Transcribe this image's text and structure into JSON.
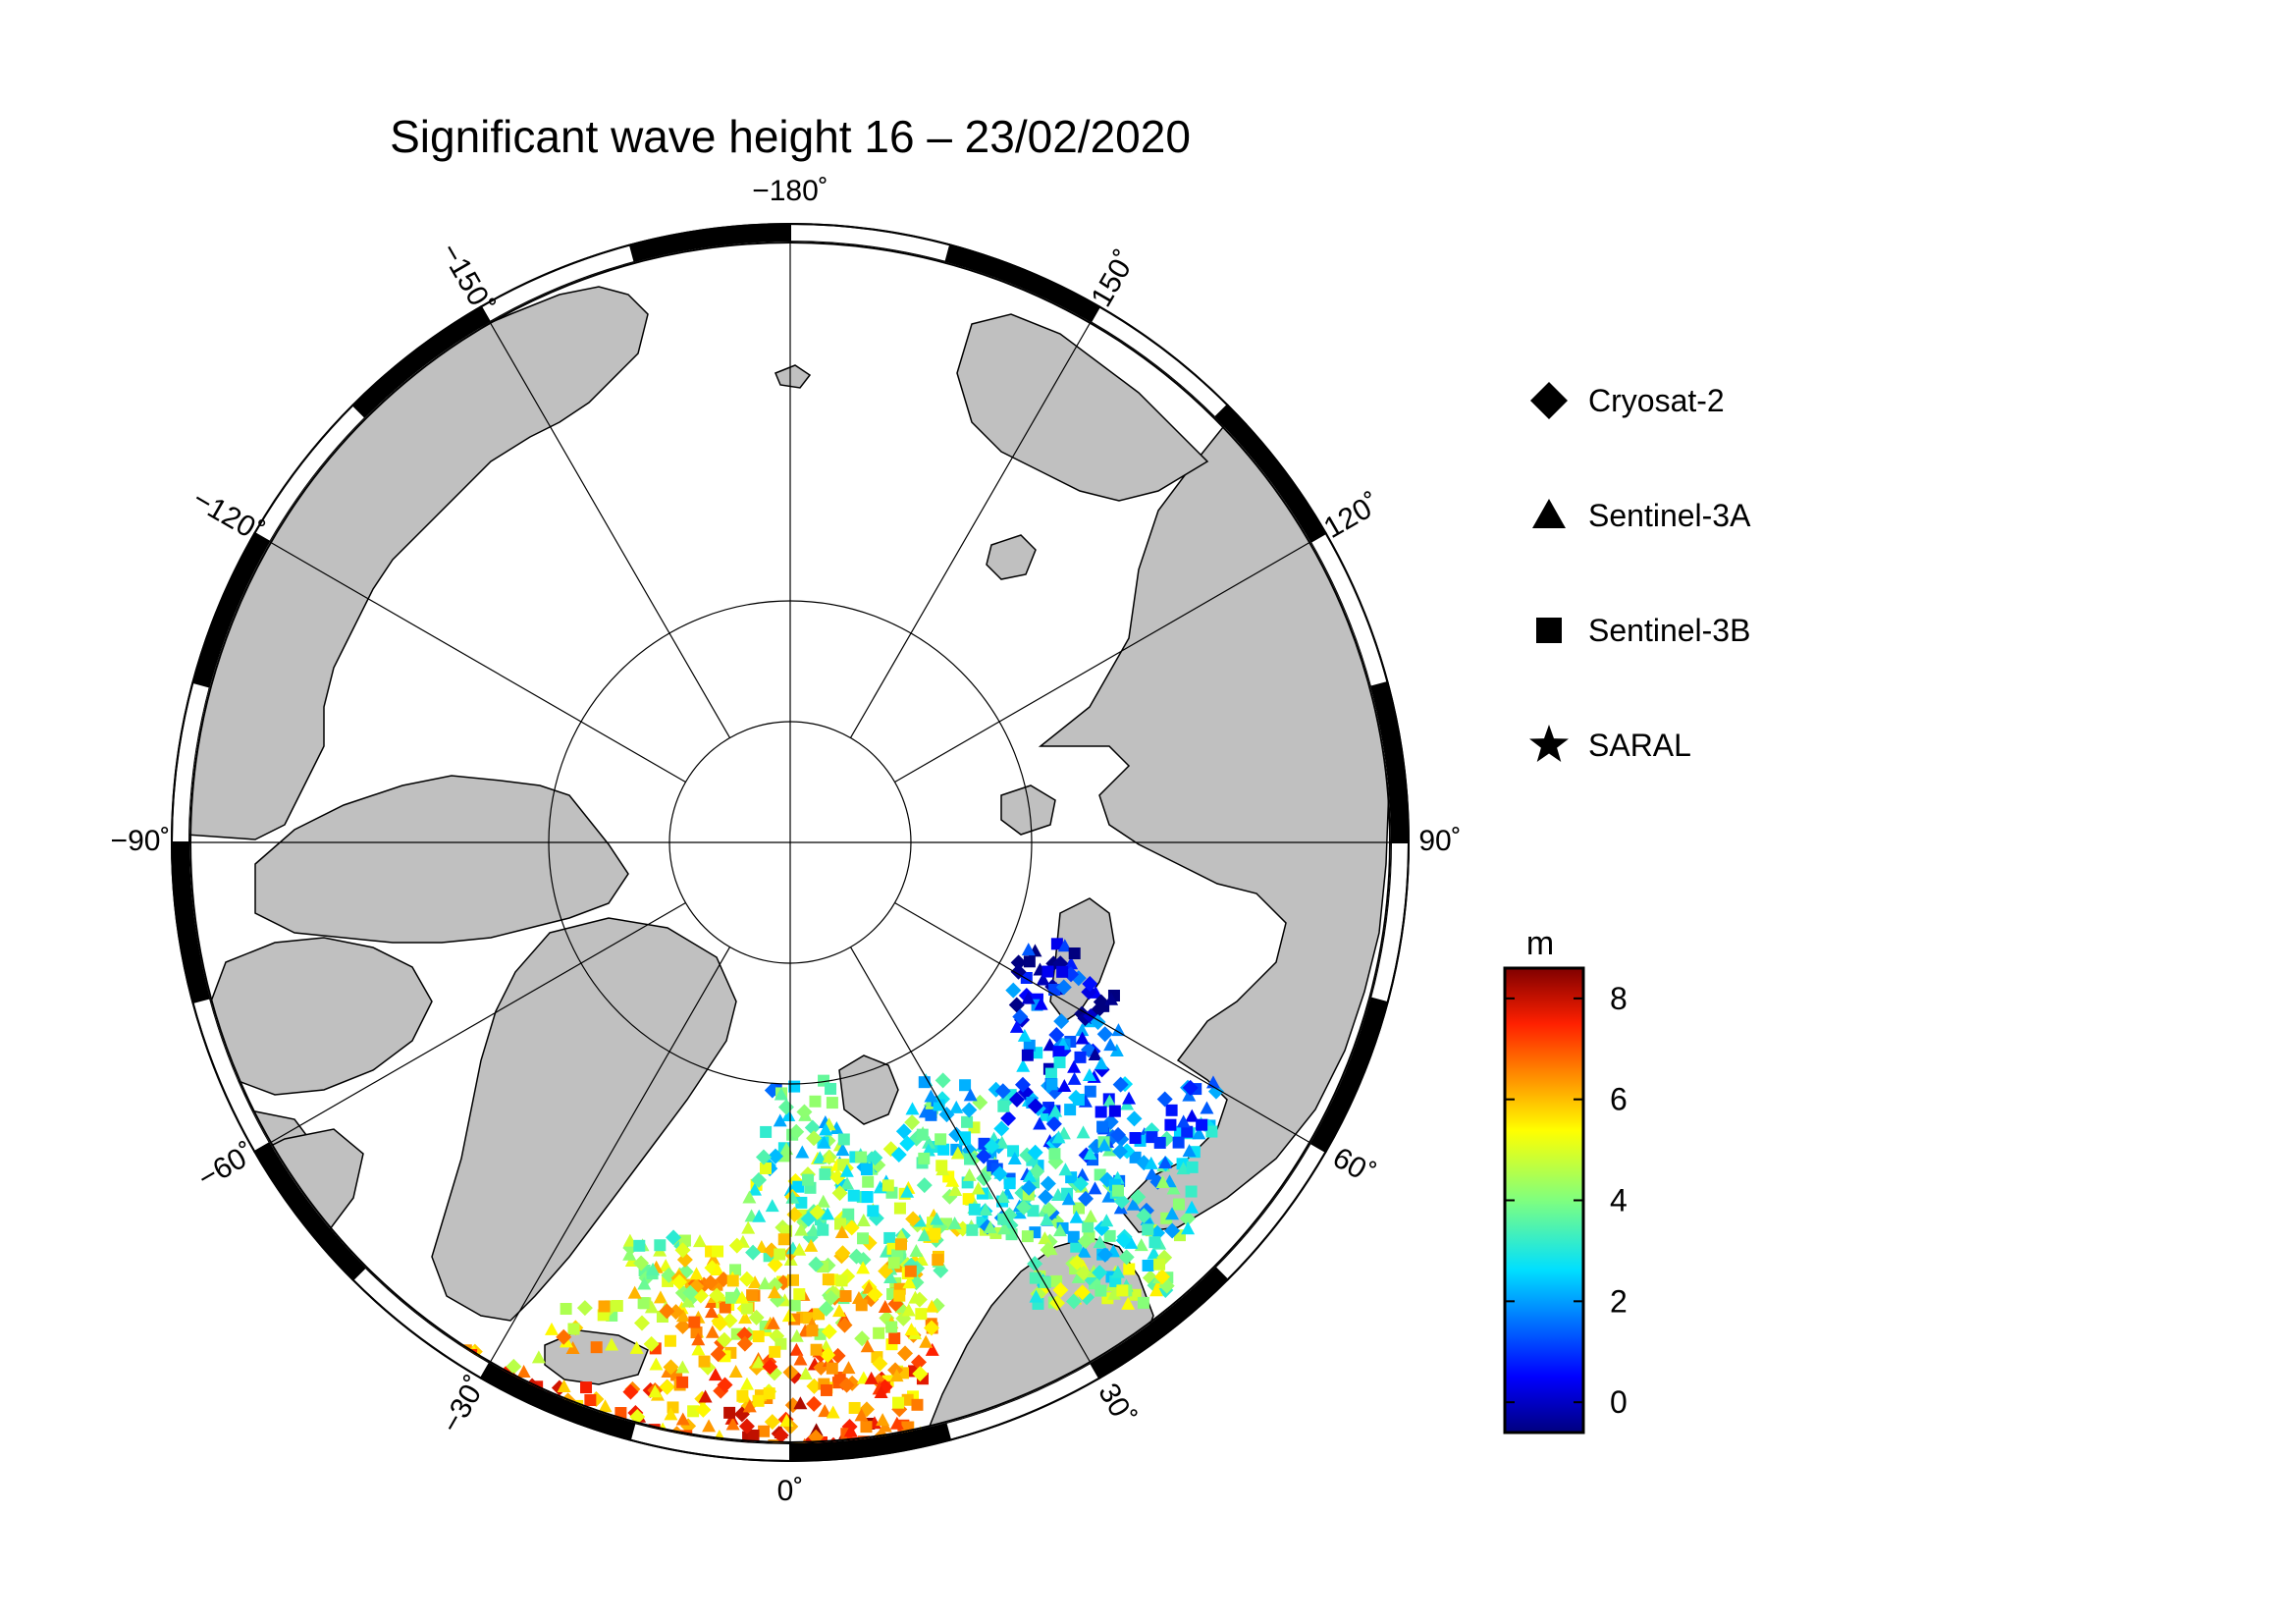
{
  "title": "Significant wave height 16 – 23/02/2020",
  "colors": {
    "land": "#c0c0c0",
    "ocean": "#ffffff",
    "coastline": "#000000",
    "frame_dark": "#000000",
    "frame_light": "#ffffff"
  },
  "longitude_labels": [
    {
      "lon": -180,
      "text": "−180˚"
    },
    {
      "lon": 150,
      "text": "150˚"
    },
    {
      "lon": 120,
      "text": "120˚"
    },
    {
      "lon": 90,
      "text": "90˚"
    },
    {
      "lon": 60,
      "text": "60˚"
    },
    {
      "lon": 30,
      "text": "30˚"
    },
    {
      "lon": 0,
      "text": "0˚"
    },
    {
      "lon": -30,
      "text": "−30˚"
    },
    {
      "lon": -60,
      "text": "−60˚"
    },
    {
      "lon": -90,
      "text": "−90˚"
    },
    {
      "lon": -120,
      "text": "−120˚"
    },
    {
      "lon": -150,
      "text": "−150˚"
    }
  ],
  "latitude_circles": [
    80,
    70
  ],
  "legend": [
    {
      "label": "Cryosat-2",
      "symbol": "diamond"
    },
    {
      "label": "Sentinel-3A",
      "symbol": "triangle"
    },
    {
      "label": "Sentinel-3B",
      "symbol": "square"
    },
    {
      "label": "SARAL",
      "symbol": "star"
    }
  ],
  "colorbar": {
    "unit": "m",
    "ticks": [
      "8",
      "6",
      "4",
      "2",
      "0"
    ],
    "min": -0.6,
    "max": 8.6,
    "colormap": "jet"
  }
}
